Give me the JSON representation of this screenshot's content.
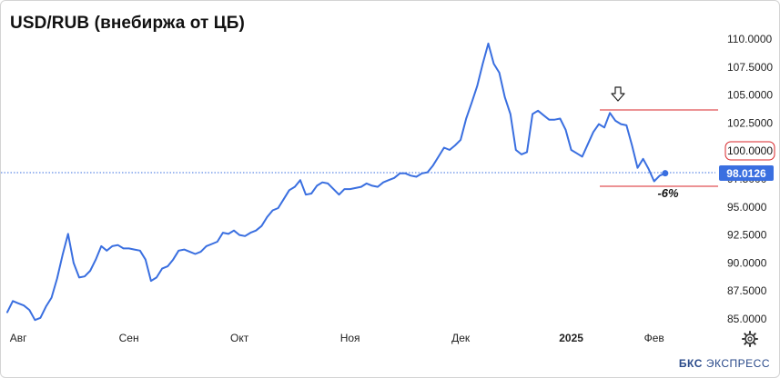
{
  "title": "USD/RUB (внебиржа от ЦБ)",
  "brand": {
    "logo": "БКС",
    "name": "ЭКСПРЕСС"
  },
  "chart_data": {
    "type": "line",
    "title": "USD/RUB (внебиржа от ЦБ)",
    "ylim": [
      84.5,
      111.5
    ],
    "y_ticks": [
      85.0,
      87.5,
      90.0,
      92.5,
      95.0,
      97.5,
      100.0,
      102.5,
      105.0,
      107.5,
      110.0
    ],
    "y_tick_labels": [
      "85.0000",
      "87.5000",
      "90.0000",
      "92.5000",
      "95.0000",
      "97.5000",
      "100.0000",
      "102.5000",
      "105.0000",
      "107.5000",
      "110.0000"
    ],
    "x_tick_labels": [
      "Авг",
      "Сен",
      "Окт",
      "Ноя",
      "Дек",
      "2025",
      "Фев"
    ],
    "x_tick_index": [
      2,
      22,
      42,
      62,
      82,
      102,
      117
    ],
    "x_count": 122,
    "values": [
      85.6,
      86.6,
      86.4,
      86.2,
      85.8,
      84.9,
      85.1,
      86.1,
      86.9,
      88.6,
      90.7,
      92.6,
      90.0,
      88.7,
      88.8,
      89.3,
      90.3,
      91.5,
      91.1,
      91.5,
      91.6,
      91.3,
      91.3,
      91.2,
      91.1,
      90.3,
      88.4,
      88.7,
      89.5,
      89.7,
      90.3,
      91.1,
      91.2,
      91.0,
      90.8,
      91.0,
      91.5,
      91.7,
      91.9,
      92.7,
      92.6,
      92.9,
      92.5,
      92.4,
      92.7,
      92.9,
      93.3,
      94.1,
      94.7,
      94.9,
      95.7,
      96.5,
      96.8,
      97.4,
      96.1,
      96.2,
      96.9,
      97.2,
      97.1,
      96.6,
      96.1,
      96.6,
      96.6,
      96.7,
      96.8,
      97.1,
      96.9,
      96.8,
      97.2,
      97.4,
      97.6,
      98.0,
      98.0,
      97.8,
      97.7,
      98.0,
      98.1,
      98.7,
      99.5,
      100.3,
      100.1,
      100.5,
      101.0,
      102.9,
      104.3,
      105.8,
      107.8,
      109.6,
      107.8,
      107.0,
      104.8,
      103.3,
      100.1,
      99.7,
      99.9,
      103.3,
      103.6,
      103.2,
      102.8,
      102.8,
      102.9,
      101.9,
      100.1,
      99.8,
      99.5,
      100.6,
      101.7,
      102.4,
      102.1,
      103.4,
      102.7,
      102.4,
      102.3,
      100.5,
      98.5,
      99.3,
      98.4,
      97.3,
      97.8,
      98.0126
    ],
    "last_value_label": "98.0126",
    "highlighted_level_label": "100.0000",
    "annotation": "-6%",
    "color": "#3a6fe0",
    "grid": false
  }
}
